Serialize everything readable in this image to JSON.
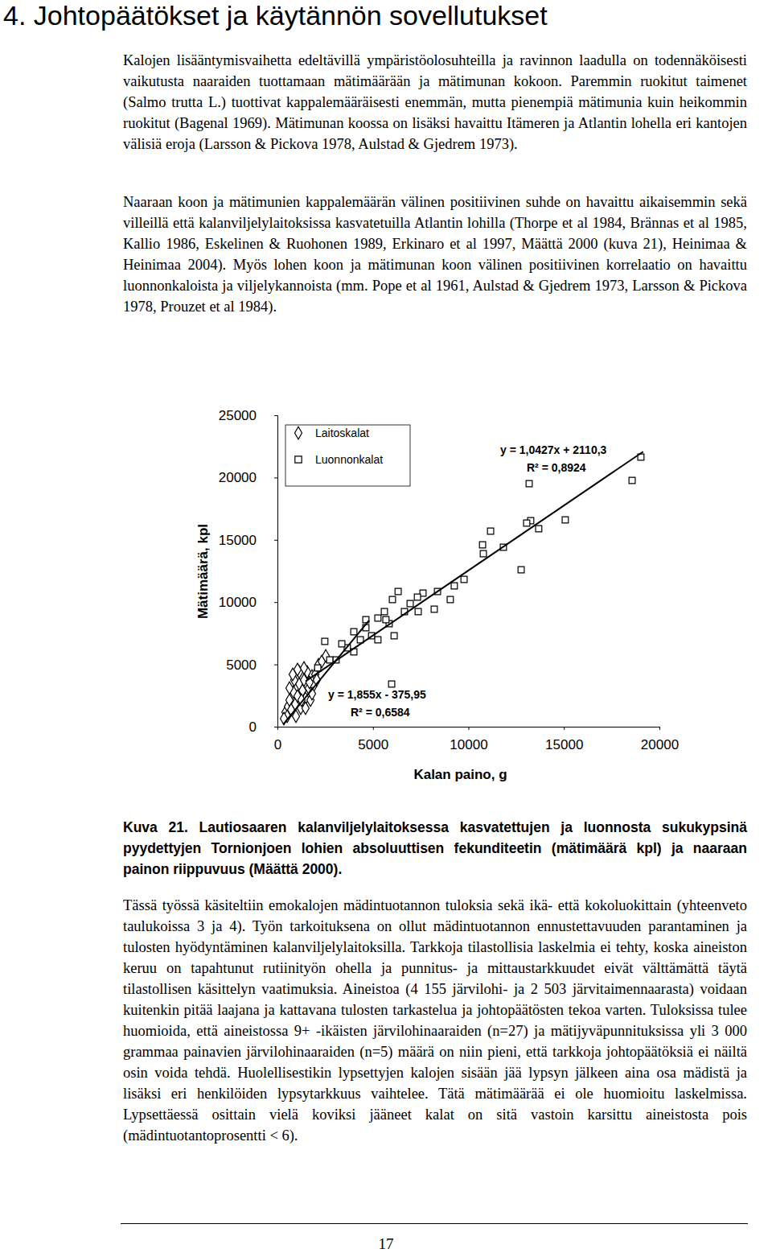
{
  "heading": "4. Johtopäätökset ja käytännön sovellutukset",
  "paragraphs": [
    "Kalojen lisääntymisvaihetta edeltävillä ympäristöolosuhteilla ja ravinnon laadulla on todennäköisesti vaikutusta naaraiden tuottamaan mätimäärään ja mätimunan kokoon. Paremmin ruokitut taimenet (Salmo trutta L.) tuottivat kappalemääräisesti enemmän, mutta pienempiä mätimunia kuin heikommin ruokitut (Bagenal 1969). Mätimunan koossa on lisäksi havaittu Itämeren ja Atlantin lohella eri kantojen välisiä eroja (Larsson & Pickova 1978, Aulstad & Gjedrem 1973).",
    "Naaraan koon ja mätimunien kappalemäärän välinen positiivinen suhde on havaittu aikaisemmin sekä villeillä että kalanviljelylaitoksissa kasvatetuilla Atlantin lohilla (Thorpe et al 1984, Brännas et al 1985, Kallio 1986, Eskelinen & Ruohonen 1989, Erkinaro et al 1997, Määttä 2000 (kuva 21), Heinimaa & Heinimaa 2004). Myös lohen koon ja mätimunan koon välinen positiivinen korrelaatio on havaittu luonnonkaloista ja viljelykannoista (mm. Pope et al 1961, Aulstad & Gjedrem 1973, Larsson & Pickova 1978, Prouzet et al 1984).",
    "Tässä työssä käsiteltiin emokalojen mädintuotannon tuloksia sekä ikä- että kokoluokittain (yhteenveto taulukoissa 3 ja 4). Työn tarkoituksena on ollut mädintuotannon ennustettavuuden parantaminen ja tulosten hyödyntäminen kalanviljelylaitoksilla. Tarkkoja tilastollisia laskelmia ei tehty, koska aineiston keruu on tapahtunut rutiinityön ohella ja punnitus- ja mittaustarkkuudet eivät välttämättä täytä tilastollisen käsittelyn vaatimuksia. Aineistoa (4 155 järvilohi- ja 2 503 järvitaimennaarasta) voidaan kuitenkin pitää laajana ja kattavana tulosten tarkastelua ja johtopäätösten tekoa varten. Tuloksissa tulee huomioida, että aineistossa 9+ -ikäisten järvilohinaaraiden (n=27) ja mätijyväpunnituksissa yli 3 000 grammaa painavien järvilohinaaraiden (n=5) määrä on niin pieni, että tarkkoja johtopäätöksiä ei näiltä osin voida tehdä. Huolellisestikin lypsettyjen kalojen sisään jää lypsyn jälkeen aina osa mädistä ja lisäksi eri henkilöiden lypsytarkkuus vaihtelee. Tätä mätimäärää ei ole huomioitu laskelmissa. Lypsettäessä osittain vielä koviksi jääneet kalat on sitä vastoin karsittu aineistosta pois (mädintuotantoprosentti < 6)."
  ],
  "chart_data": {
    "type": "scatter",
    "x_label": "Kalan paino, g",
    "y_label": "Mätimäärä, kpl",
    "xlim": [
      0,
      20000
    ],
    "ylim": [
      0,
      25000
    ],
    "xticks": [
      0,
      5000,
      10000,
      15000,
      20000
    ],
    "yticks": [
      0,
      5000,
      10000,
      15000,
      20000,
      25000
    ],
    "grid": false,
    "legend": "top-left",
    "annotations": [
      "y = 1,0427x + 2110,3",
      "R² = 0,8924",
      "y = 1,855x - 375,95",
      "R² = 0,6584"
    ],
    "series": [
      {
        "name": "Laitoskalat",
        "type": "scatter",
        "marker": "diamond",
        "color": "#000000",
        "x": [
          420,
          550,
          630,
          720,
          840,
          930,
          1050,
          1140,
          1220,
          1310,
          1390,
          1470,
          1560,
          1640,
          1730,
          1810,
          1890,
          1140,
          880,
          630,
          510,
          340,
          970,
          1260,
          1470,
          1680,
          1980,
          2150,
          2320,
          2530,
          1390,
          1050,
          800,
          1810,
          2060
        ],
        "values": [
          1160,
          1610,
          2130,
          1360,
          2780,
          1810,
          2450,
          3420,
          1490,
          2910,
          3750,
          2260,
          4390,
          3100,
          2130,
          4070,
          3290,
          4390,
          3750,
          3100,
          840,
          650,
          840,
          2130,
          1490,
          3550,
          4200,
          4970,
          5230,
          5680,
          4720,
          4590,
          4200,
          2650,
          3750
        ]
      },
      {
        "name": "Luonnonkalat",
        "type": "scatter",
        "marker": "square",
        "color": "#000000",
        "x": [
          19030,
          18570,
          13180,
          15070,
          13260,
          13680,
          12760,
          11830,
          10740,
          10780,
          9770,
          9260,
          8380,
          8210,
          7620,
          7330,
          6950,
          6650,
          6320,
          6020,
          5850,
          5600,
          5260,
          4930,
          4630,
          4340,
          4000,
          3660,
          3370,
          3070,
          2740,
          2480,
          5980,
          6110,
          7370,
          9050,
          11160,
          13050,
          5680,
          5260,
          4630,
          4000,
          2110
        ],
        "values": [
          21640,
          19770,
          19510,
          16600,
          16540,
          15890,
          12600,
          14400,
          14600,
          13890,
          11820,
          11300,
          10850,
          9430,
          10720,
          10400,
          9880,
          9240,
          10850,
          10210,
          8270,
          9240,
          8720,
          7300,
          7950,
          6980,
          7620,
          6330,
          6650,
          5360,
          5360,
          6850,
          3420,
          7300,
          9240,
          10210,
          15700,
          16340,
          8590,
          6980,
          8590,
          6010,
          4720
        ]
      },
      {
        "type": "line",
        "line_style": "solid",
        "color": "#000000",
        "x": [
          1470,
          19150
        ],
        "values": [
          3640,
          22080
        ]
      },
      {
        "type": "line",
        "line_style": "solid",
        "color": "#000000",
        "x": [
          300,
          4800
        ],
        "values": [
          180,
          8530
        ]
      }
    ]
  },
  "caption": "Kuva 21. Lautiosaaren kalanviljelylaitoksessa kasvatettujen ja luonnosta sukukypsinä pyydettyjen Tornionjoen lohien absoluuttisen fekunditeetin (mätimäärä kpl) ja naaraan painon riippuvuus (Määttä 2000).",
  "page_number": "17"
}
